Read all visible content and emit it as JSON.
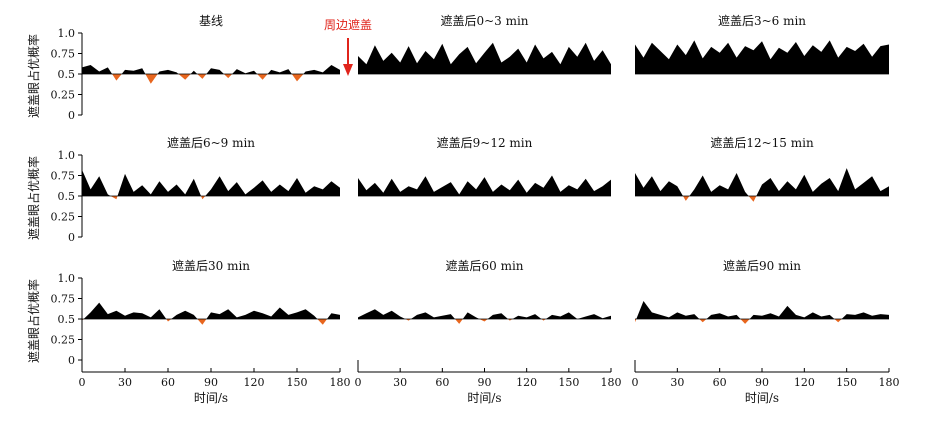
{
  "colors": {
    "above": "#000000",
    "below": "#e8661e",
    "arrow": "#e0241b",
    "axis": "#000000"
  },
  "annotation": {
    "label": "周边遮盖",
    "at_panel": 1
  },
  "chart_data": {
    "type": "area",
    "baseline": 0.5,
    "ylabel": "遮盖眼占优概率",
    "xlabel": "时间/s",
    "xlim": [
      0,
      180
    ],
    "ylim": [
      0,
      1.0
    ],
    "x_ticks": [
      0,
      30,
      60,
      90,
      120,
      150,
      180
    ],
    "y_ticks": [
      0,
      0.25,
      0.5,
      0.75,
      1.0
    ],
    "y_tick_labels": [
      "0",
      "0.25",
      "0.5",
      "0.75",
      "1.0"
    ],
    "panels": [
      {
        "title": "基线",
        "x": [
          0,
          6,
          12,
          18,
          24,
          30,
          36,
          42,
          48,
          54,
          60,
          66,
          72,
          78,
          84,
          90,
          96,
          102,
          108,
          114,
          120,
          126,
          132,
          138,
          144,
          150,
          156,
          162,
          168,
          174,
          180
        ],
        "y": [
          0.58,
          0.61,
          0.53,
          0.58,
          0.42,
          0.55,
          0.54,
          0.57,
          0.38,
          0.53,
          0.55,
          0.52,
          0.43,
          0.54,
          0.44,
          0.57,
          0.55,
          0.45,
          0.56,
          0.51,
          0.54,
          0.43,
          0.55,
          0.52,
          0.56,
          0.41,
          0.53,
          0.55,
          0.52,
          0.61,
          0.55
        ]
      },
      {
        "title": "遮盖后0~3 min",
        "x": [
          0,
          6,
          12,
          18,
          24,
          30,
          36,
          42,
          48,
          54,
          60,
          66,
          72,
          78,
          84,
          90,
          96,
          102,
          108,
          114,
          120,
          126,
          132,
          138,
          144,
          150,
          156,
          162,
          168,
          174,
          180
        ],
        "y": [
          0.72,
          0.62,
          0.85,
          0.66,
          0.76,
          0.64,
          0.84,
          0.63,
          0.78,
          0.68,
          0.87,
          0.62,
          0.74,
          0.83,
          0.63,
          0.76,
          0.88,
          0.64,
          0.71,
          0.81,
          0.64,
          0.86,
          0.69,
          0.77,
          0.62,
          0.83,
          0.71,
          0.88,
          0.66,
          0.79,
          0.62
        ]
      },
      {
        "title": "遮盖后3~6 min",
        "x": [
          0,
          6,
          12,
          18,
          24,
          30,
          36,
          42,
          48,
          54,
          60,
          66,
          72,
          78,
          84,
          90,
          96,
          102,
          108,
          114,
          120,
          126,
          132,
          138,
          144,
          150,
          156,
          162,
          168,
          174,
          180
        ],
        "y": [
          0.86,
          0.7,
          0.88,
          0.78,
          0.68,
          0.86,
          0.73,
          0.91,
          0.69,
          0.83,
          0.76,
          0.88,
          0.7,
          0.84,
          0.79,
          0.9,
          0.68,
          0.82,
          0.76,
          0.89,
          0.72,
          0.85,
          0.77,
          0.91,
          0.7,
          0.83,
          0.78,
          0.87,
          0.71,
          0.84,
          0.86
        ]
      },
      {
        "title": "遮盖后6~9 min",
        "x": [
          0,
          6,
          12,
          18,
          24,
          30,
          36,
          42,
          48,
          54,
          60,
          66,
          72,
          78,
          84,
          90,
          96,
          102,
          108,
          114,
          120,
          126,
          132,
          138,
          144,
          150,
          156,
          162,
          168,
          174,
          180
        ],
        "y": [
          0.82,
          0.58,
          0.74,
          0.52,
          0.46,
          0.77,
          0.55,
          0.63,
          0.52,
          0.68,
          0.55,
          0.64,
          0.52,
          0.71,
          0.46,
          0.58,
          0.74,
          0.56,
          0.67,
          0.52,
          0.6,
          0.69,
          0.55,
          0.64,
          0.56,
          0.72,
          0.54,
          0.62,
          0.58,
          0.68,
          0.6
        ]
      },
      {
        "title": "遮盖后9~12 min",
        "x": [
          0,
          6,
          12,
          18,
          24,
          30,
          36,
          42,
          48,
          54,
          60,
          66,
          72,
          78,
          84,
          90,
          96,
          102,
          108,
          114,
          120,
          126,
          132,
          138,
          144,
          150,
          156,
          162,
          168,
          174,
          180
        ],
        "y": [
          0.72,
          0.57,
          0.66,
          0.54,
          0.71,
          0.55,
          0.62,
          0.58,
          0.74,
          0.55,
          0.61,
          0.67,
          0.52,
          0.68,
          0.58,
          0.73,
          0.55,
          0.64,
          0.57,
          0.7,
          0.54,
          0.66,
          0.6,
          0.75,
          0.55,
          0.63,
          0.58,
          0.71,
          0.56,
          0.62,
          0.7
        ]
      },
      {
        "title": "遮盖后12~15 min",
        "x": [
          0,
          6,
          12,
          18,
          24,
          30,
          36,
          42,
          48,
          54,
          60,
          66,
          72,
          78,
          84,
          90,
          96,
          102,
          108,
          114,
          120,
          126,
          132,
          138,
          144,
          150,
          156,
          162,
          168,
          174,
          180
        ],
        "y": [
          0.78,
          0.6,
          0.74,
          0.56,
          0.68,
          0.62,
          0.44,
          0.58,
          0.75,
          0.55,
          0.63,
          0.58,
          0.78,
          0.55,
          0.43,
          0.64,
          0.72,
          0.56,
          0.68,
          0.58,
          0.76,
          0.55,
          0.65,
          0.72,
          0.56,
          0.84,
          0.58,
          0.66,
          0.74,
          0.56,
          0.62
        ]
      },
      {
        "title": "遮盖后30 min",
        "x": [
          0,
          6,
          12,
          18,
          24,
          30,
          36,
          42,
          48,
          54,
          60,
          66,
          72,
          78,
          84,
          90,
          96,
          102,
          108,
          114,
          120,
          126,
          132,
          138,
          144,
          150,
          156,
          162,
          168,
          174,
          180
        ],
        "y": [
          0.48,
          0.58,
          0.7,
          0.56,
          0.6,
          0.54,
          0.58,
          0.57,
          0.52,
          0.62,
          0.47,
          0.55,
          0.6,
          0.55,
          0.43,
          0.58,
          0.56,
          0.62,
          0.52,
          0.55,
          0.6,
          0.57,
          0.53,
          0.64,
          0.55,
          0.58,
          0.62,
          0.54,
          0.43,
          0.57,
          0.55
        ]
      },
      {
        "title": "遮盖后60 min",
        "x": [
          0,
          6,
          12,
          18,
          24,
          30,
          36,
          42,
          48,
          54,
          60,
          66,
          72,
          78,
          84,
          90,
          96,
          102,
          108,
          114,
          120,
          126,
          132,
          138,
          144,
          150,
          156,
          162,
          168,
          174,
          180
        ],
        "y": [
          0.52,
          0.57,
          0.62,
          0.55,
          0.6,
          0.53,
          0.48,
          0.55,
          0.58,
          0.52,
          0.54,
          0.56,
          0.44,
          0.58,
          0.52,
          0.47,
          0.55,
          0.57,
          0.48,
          0.54,
          0.52,
          0.56,
          0.48,
          0.55,
          0.53,
          0.58,
          0.5,
          0.53,
          0.56,
          0.51,
          0.54
        ]
      },
      {
        "title": "遮盖后90 min",
        "x": [
          0,
          6,
          12,
          18,
          24,
          30,
          36,
          42,
          48,
          54,
          60,
          66,
          72,
          78,
          84,
          90,
          96,
          102,
          108,
          114,
          120,
          126,
          132,
          138,
          144,
          150,
          156,
          162,
          168,
          174,
          180
        ],
        "y": [
          0.46,
          0.72,
          0.58,
          0.55,
          0.52,
          0.58,
          0.54,
          0.56,
          0.46,
          0.55,
          0.57,
          0.53,
          0.55,
          0.44,
          0.55,
          0.54,
          0.57,
          0.53,
          0.66,
          0.55,
          0.52,
          0.58,
          0.53,
          0.55,
          0.46,
          0.56,
          0.55,
          0.58,
          0.54,
          0.56,
          0.55
        ]
      }
    ]
  }
}
